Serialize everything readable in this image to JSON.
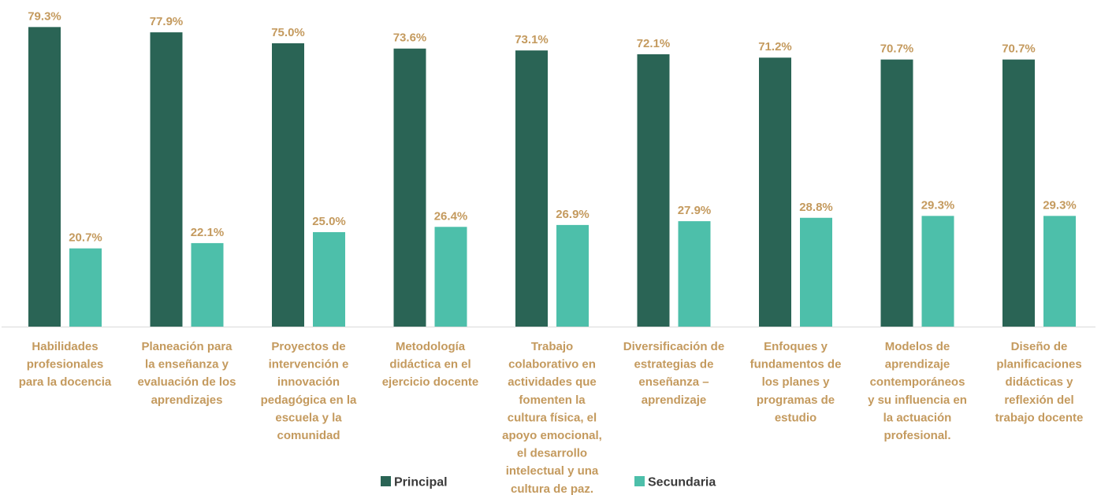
{
  "chart_data": {
    "type": "bar",
    "title": "",
    "xlabel": "",
    "ylabel": "",
    "ylim": [
      0,
      80
    ],
    "grid": false,
    "legend": "bottom",
    "value_format": "percent_one_decimal",
    "categories": [
      [
        "Habilidades",
        "profesionales",
        "para la docencia"
      ],
      [
        "Planeación para",
        "la enseñanza y",
        "evaluación de los",
        "aprendizajes"
      ],
      [
        "Proyectos de",
        "intervención e",
        "innovación",
        "pedagógica en la",
        "escuela y la",
        "comunidad"
      ],
      [
        "Metodología",
        "didáctica en el",
        "ejercicio docente"
      ],
      [
        "Trabajo",
        "colaborativo en",
        "actividades que",
        "fomenten la",
        "cultura física, el",
        "apoyo emocional,",
        "el desarrollo",
        "intelectual y una",
        "cultura de paz."
      ],
      [
        "Diversificación de",
        "estrategias de",
        "enseñanza –",
        "aprendizaje"
      ],
      [
        "Enfoques y",
        "fundamentos de",
        "los planes y",
        "programas de",
        "estudio"
      ],
      [
        "Modelos de",
        "aprendizaje",
        "contemporáneos",
        "y su influencia en",
        "la actuación",
        "profesional."
      ],
      [
        "Diseño de",
        "planificaciones",
        "didácticas y",
        "reflexión del",
        "trabajo docente"
      ]
    ],
    "series": [
      {
        "name": "Principal",
        "color": "#2a6455",
        "values": [
          79.3,
          77.9,
          75.0,
          73.6,
          73.1,
          72.1,
          71.2,
          70.7,
          70.7
        ],
        "labels": [
          "79.3%",
          "77.9%",
          "75.0%",
          "73.6%",
          "73.1%",
          "72.1%",
          "71.2%",
          "70.7%",
          "70.7%"
        ]
      },
      {
        "name": "Secundaria",
        "color": "#4dbfaa",
        "values": [
          20.7,
          22.1,
          25.0,
          26.4,
          26.9,
          27.9,
          28.8,
          29.3,
          29.3
        ],
        "labels": [
          "20.7%",
          "22.1%",
          "25.0%",
          "26.4%",
          "26.9%",
          "27.9%",
          "28.8%",
          "29.3%",
          "29.3%"
        ]
      }
    ],
    "colors": {
      "label_text": "#c49a5e",
      "axis": "#d9d9d9",
      "legend_text": "#3a3a3a"
    }
  }
}
